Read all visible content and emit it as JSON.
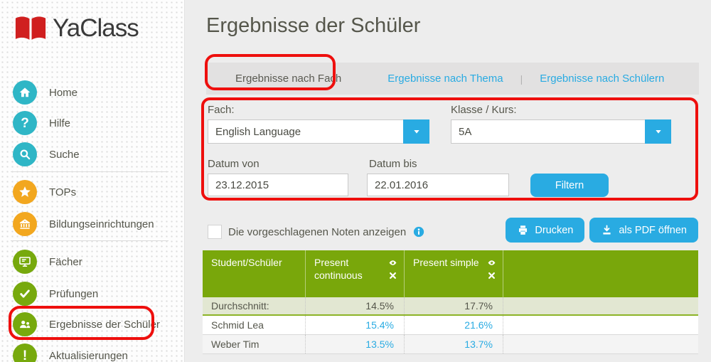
{
  "app": {
    "name": "YaClass"
  },
  "page": {
    "title": "Ergebnisse der Schüler"
  },
  "sidebar": {
    "groups": [
      {
        "items": [
          {
            "id": "home",
            "label": "Home",
            "icon": "home-icon",
            "color": "#2fb6c6"
          },
          {
            "id": "hilfe",
            "label": "Hilfe",
            "icon": "question-icon",
            "color": "#2fb6c6"
          },
          {
            "id": "suche",
            "label": "Suche",
            "icon": "search-icon",
            "color": "#2fb6c6"
          }
        ]
      },
      {
        "items": [
          {
            "id": "tops",
            "label": "TOPs",
            "icon": "star-icon",
            "color": "#f2a71f"
          },
          {
            "id": "bildungseinrichtungen",
            "label": "Bildungseinrichtungen",
            "icon": "institution-icon",
            "color": "#f2a71f"
          }
        ]
      },
      {
        "items": [
          {
            "id": "faecher",
            "label": "Fächer",
            "icon": "monitor-icon",
            "color": "#77a90d"
          },
          {
            "id": "pruefungen",
            "label": "Prüfungen",
            "icon": "check-icon",
            "color": "#77a90d"
          },
          {
            "id": "ergebnisse-der-schueler",
            "label": "Ergebnisse der Schüler",
            "icon": "students-icon",
            "color": "#77a90d",
            "highlighted": true
          },
          {
            "id": "aktualisierungen",
            "label": "Aktualisierungen",
            "icon": "exclamation-icon",
            "color": "#77a90d"
          }
        ]
      }
    ]
  },
  "tabs": [
    {
      "label": "Ergebnisse nach Fach",
      "active": true,
      "annotated": true
    },
    {
      "label": "Ergebnisse nach Thema",
      "active": false
    },
    {
      "label": "Ergebnisse nach Schülern",
      "active": false
    }
  ],
  "filter": {
    "fach_label": "Fach:",
    "fach_value": "English Language",
    "klasse_label": "Klasse / Kurs:",
    "klasse_value": "5A",
    "datum_von_label": "Datum von",
    "datum_von_value": "23.12.2015",
    "datum_bis_label": "Datum bis",
    "datum_bis_value": "22.01.2016",
    "filter_button": "Filtern"
  },
  "toolbar": {
    "checkbox_label": "Die vorgeschlagenen Noten anzeigen",
    "checkbox_checked": false,
    "info_icon": "info-icon",
    "print_label": "Drucken",
    "pdf_label": "als PDF öffnen"
  },
  "results_table": {
    "columns": [
      {
        "label": "Student/Schüler"
      },
      {
        "label": "Present continuous",
        "icons": [
          "eye-icon",
          "remove-icon"
        ]
      },
      {
        "label": "Present simple",
        "icons": [
          "eye-icon",
          "remove-icon"
        ]
      }
    ],
    "rows": [
      {
        "name": "Durchschnitt:",
        "values": [
          "14.5%",
          "17.7%"
        ],
        "type": "average"
      },
      {
        "name": "Schmid Lea",
        "values": [
          "15.4%",
          "21.6%"
        ],
        "type": "student"
      },
      {
        "name": "Weber Tim",
        "values": [
          "13.5%",
          "13.7%"
        ],
        "type": "student"
      }
    ]
  },
  "colors": {
    "accent_blue": "#29abe2",
    "table_header_green": "#79a70b",
    "average_row_green": "#e2e7d2",
    "annotation_red": "#ee0f0d",
    "logo_red": "#d01f1f",
    "sidebar_teal": "#2fb6c6",
    "sidebar_orange": "#f2a71f",
    "sidebar_green": "#77a90d"
  }
}
